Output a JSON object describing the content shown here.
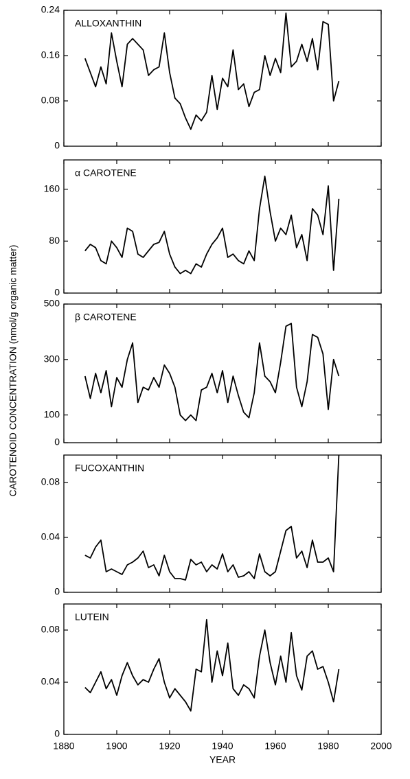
{
  "ylabel": "CAROTENOID CONCENTRATION  (nmol/g organic matter)",
  "chart_data": [
    {
      "type": "line",
      "title": "ALLOXANTHIN",
      "color": "#000000",
      "x": [
        1888,
        1890,
        1892,
        1894,
        1896,
        1898,
        1900,
        1902,
        1904,
        1906,
        1908,
        1910,
        1912,
        1914,
        1916,
        1918,
        1920,
        1922,
        1924,
        1926,
        1928,
        1930,
        1932,
        1934,
        1936,
        1938,
        1940,
        1942,
        1944,
        1946,
        1948,
        1950,
        1952,
        1954,
        1956,
        1958,
        1960,
        1962,
        1964,
        1966,
        1968,
        1970,
        1972,
        1974,
        1976,
        1978,
        1980,
        1982,
        1984
      ],
      "values": [
        0.155,
        0.13,
        0.105,
        0.14,
        0.11,
        0.2,
        0.15,
        0.105,
        0.18,
        0.19,
        0.18,
        0.17,
        0.125,
        0.135,
        0.14,
        0.2,
        0.13,
        0.085,
        0.075,
        0.05,
        0.03,
        0.055,
        0.045,
        0.06,
        0.125,
        0.065,
        0.12,
        0.105,
        0.17,
        0.1,
        0.11,
        0.07,
        0.095,
        0.1,
        0.16,
        0.125,
        0.155,
        0.13,
        0.235,
        0.14,
        0.15,
        0.18,
        0.15,
        0.19,
        0.135,
        0.22,
        0.215,
        0.08,
        0.115
      ],
      "xlim": [
        1880,
        2000
      ],
      "xticks": [
        1880,
        1900,
        1920,
        1940,
        1960,
        1980,
        2000
      ],
      "ylim": [
        0,
        0.24
      ],
      "yticks": [
        0,
        0.08,
        0.16,
        0.24
      ]
    },
    {
      "type": "line",
      "title": "α CAROTENE",
      "color": "#000000",
      "x": [
        1888,
        1890,
        1892,
        1894,
        1896,
        1898,
        1900,
        1902,
        1904,
        1906,
        1908,
        1910,
        1912,
        1914,
        1916,
        1918,
        1920,
        1922,
        1924,
        1926,
        1928,
        1930,
        1932,
        1934,
        1936,
        1938,
        1940,
        1942,
        1944,
        1946,
        1948,
        1950,
        1952,
        1954,
        1956,
        1958,
        1960,
        1962,
        1964,
        1966,
        1968,
        1970,
        1972,
        1974,
        1976,
        1978,
        1980,
        1982,
        1984
      ],
      "values": [
        65,
        75,
        70,
        50,
        45,
        80,
        70,
        55,
        100,
        95,
        60,
        55,
        65,
        75,
        78,
        95,
        60,
        40,
        30,
        35,
        30,
        45,
        40,
        60,
        75,
        85,
        100,
        55,
        60,
        50,
        45,
        65,
        50,
        130,
        180,
        125,
        80,
        100,
        90,
        120,
        70,
        90,
        50,
        130,
        120,
        90,
        165,
        35,
        145
      ],
      "xlim": [
        1880,
        2000
      ],
      "xticks": [
        1880,
        1900,
        1920,
        1940,
        1960,
        1980,
        2000
      ],
      "ylim": [
        0,
        205
      ],
      "yticks": [
        0,
        80,
        160
      ]
    },
    {
      "type": "line",
      "title": "β CAROTENE",
      "color": "#000000",
      "x": [
        1888,
        1890,
        1892,
        1894,
        1896,
        1898,
        1900,
        1902,
        1904,
        1906,
        1908,
        1910,
        1912,
        1914,
        1916,
        1918,
        1920,
        1922,
        1924,
        1926,
        1928,
        1930,
        1932,
        1934,
        1936,
        1938,
        1940,
        1942,
        1944,
        1946,
        1948,
        1950,
        1952,
        1954,
        1956,
        1958,
        1960,
        1962,
        1964,
        1966,
        1968,
        1970,
        1972,
        1974,
        1976,
        1978,
        1980,
        1982,
        1984
      ],
      "values": [
        240,
        160,
        250,
        180,
        260,
        130,
        235,
        200,
        300,
        360,
        145,
        200,
        190,
        235,
        200,
        280,
        250,
        200,
        100,
        80,
        100,
        80,
        190,
        200,
        250,
        180,
        260,
        145,
        240,
        170,
        110,
        90,
        180,
        360,
        240,
        220,
        180,
        290,
        420,
        430,
        200,
        130,
        220,
        390,
        380,
        320,
        120,
        300,
        240
      ],
      "xlim": [
        1880,
        2000
      ],
      "xticks": [
        1880,
        1900,
        1920,
        1940,
        1960,
        1980,
        2000
      ],
      "ylim": [
        0,
        500
      ],
      "yticks": [
        0,
        100,
        300,
        500
      ]
    },
    {
      "type": "line",
      "title": "FUCOXANTHIN",
      "color": "#000000",
      "x": [
        1888,
        1890,
        1892,
        1894,
        1896,
        1898,
        1900,
        1902,
        1904,
        1906,
        1908,
        1910,
        1912,
        1914,
        1916,
        1918,
        1920,
        1922,
        1924,
        1926,
        1928,
        1930,
        1932,
        1934,
        1936,
        1938,
        1940,
        1942,
        1944,
        1946,
        1948,
        1950,
        1952,
        1954,
        1956,
        1958,
        1960,
        1962,
        1964,
        1966,
        1968,
        1970,
        1972,
        1974,
        1976,
        1978,
        1980,
        1982,
        1984
      ],
      "values": [
        0.027,
        0.025,
        0.033,
        0.038,
        0.015,
        0.017,
        0.015,
        0.013,
        0.02,
        0.022,
        0.025,
        0.03,
        0.018,
        0.02,
        0.012,
        0.027,
        0.015,
        0.01,
        0.01,
        0.009,
        0.024,
        0.02,
        0.022,
        0.015,
        0.02,
        0.017,
        0.028,
        0.015,
        0.02,
        0.011,
        0.012,
        0.015,
        0.01,
        0.028,
        0.015,
        0.012,
        0.015,
        0.03,
        0.045,
        0.048,
        0.025,
        0.03,
        0.018,
        0.038,
        0.022,
        0.022,
        0.025,
        0.015,
        0.1
      ],
      "xlim": [
        1880,
        2000
      ],
      "xticks": [
        1880,
        1900,
        1920,
        1940,
        1960,
        1980,
        2000
      ],
      "ylim": [
        0,
        0.1
      ],
      "yticks": [
        0,
        0.04,
        0.08
      ]
    },
    {
      "type": "line",
      "title": "LUTEIN",
      "color": "#000000",
      "xlabel": "YEAR",
      "x": [
        1888,
        1890,
        1892,
        1894,
        1896,
        1898,
        1900,
        1902,
        1904,
        1906,
        1908,
        1910,
        1912,
        1914,
        1916,
        1918,
        1920,
        1922,
        1924,
        1926,
        1928,
        1930,
        1932,
        1934,
        1936,
        1938,
        1940,
        1942,
        1944,
        1946,
        1948,
        1950,
        1952,
        1954,
        1956,
        1958,
        1960,
        1962,
        1964,
        1966,
        1968,
        1970,
        1972,
        1974,
        1976,
        1978,
        1980,
        1982,
        1984
      ],
      "values": [
        0.036,
        0.032,
        0.04,
        0.048,
        0.035,
        0.042,
        0.03,
        0.045,
        0.055,
        0.045,
        0.038,
        0.042,
        0.04,
        0.05,
        0.058,
        0.04,
        0.028,
        0.035,
        0.03,
        0.025,
        0.018,
        0.05,
        0.048,
        0.088,
        0.04,
        0.064,
        0.045,
        0.07,
        0.035,
        0.03,
        0.038,
        0.035,
        0.028,
        0.06,
        0.08,
        0.055,
        0.038,
        0.06,
        0.04,
        0.078,
        0.045,
        0.034,
        0.06,
        0.064,
        0.05,
        0.052,
        0.04,
        0.025,
        0.05
      ],
      "xlim": [
        1880,
        2000
      ],
      "xticks": [
        1880,
        1900,
        1920,
        1940,
        1960,
        1980,
        2000
      ],
      "ylim": [
        0,
        0.1
      ],
      "yticks": [
        0,
        0.04,
        0.08
      ]
    }
  ]
}
